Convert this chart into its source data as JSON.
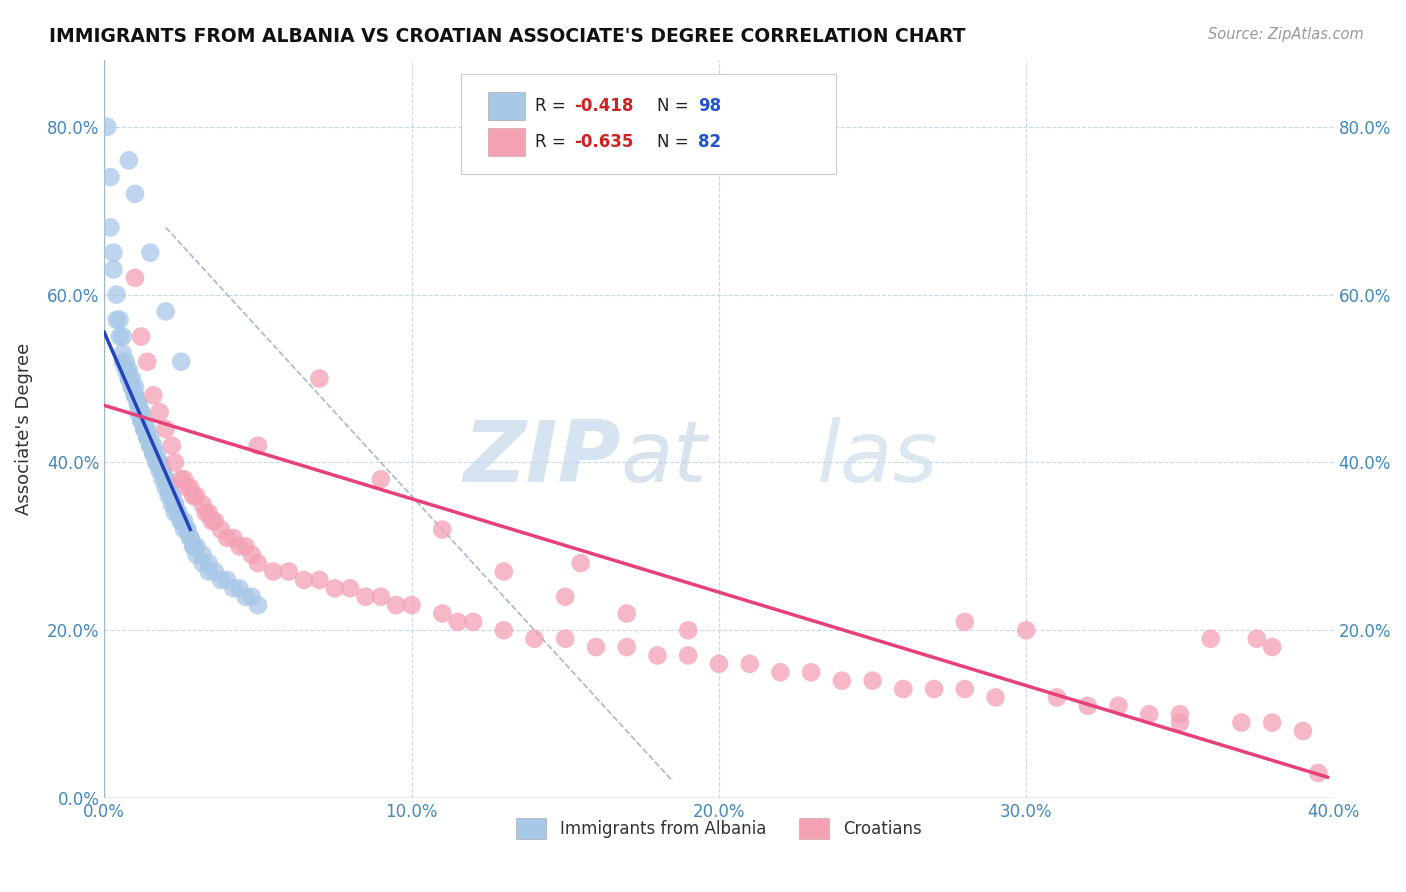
{
  "title": "IMMIGRANTS FROM ALBANIA VS CROATIAN ASSOCIATE'S DEGREE CORRELATION CHART",
  "source_text": "Source: ZipAtlas.com",
  "ylabel": "Associate's Degree",
  "xlim": [
    0.0,
    0.4
  ],
  "ylim": [
    0.0,
    0.88
  ],
  "xticks": [
    0.0,
    0.1,
    0.2,
    0.3,
    0.4
  ],
  "yticks": [
    0.0,
    0.2,
    0.4,
    0.6,
    0.8
  ],
  "xtick_labels": [
    "0.0%",
    "10.0%",
    "20.0%",
    "30.0%",
    "40.0%"
  ],
  "ytick_labels": [
    "0.0%",
    "20.0%",
    "40.0%",
    "60.0%",
    "80.0%"
  ],
  "blue_color": "#a8c8e8",
  "pink_color": "#f4a0b5",
  "blue_line_color": "#2244bb",
  "pink_line_color": "#e8407a",
  "grid_color": "#c8d8e8",
  "dashed_line_color": "#aab8cc",
  "background_color": "#ffffff",
  "blue_scatter": [
    [
      0.001,
      0.8
    ],
    [
      0.002,
      0.74
    ],
    [
      0.002,
      0.68
    ],
    [
      0.003,
      0.65
    ],
    [
      0.003,
      0.63
    ],
    [
      0.004,
      0.6
    ],
    [
      0.004,
      0.57
    ],
    [
      0.005,
      0.57
    ],
    [
      0.005,
      0.55
    ],
    [
      0.006,
      0.55
    ],
    [
      0.006,
      0.53
    ],
    [
      0.006,
      0.52
    ],
    [
      0.007,
      0.52
    ],
    [
      0.007,
      0.51
    ],
    [
      0.008,
      0.51
    ],
    [
      0.008,
      0.5
    ],
    [
      0.008,
      0.5
    ],
    [
      0.009,
      0.5
    ],
    [
      0.009,
      0.49
    ],
    [
      0.009,
      0.49
    ],
    [
      0.01,
      0.49
    ],
    [
      0.01,
      0.48
    ],
    [
      0.01,
      0.48
    ],
    [
      0.01,
      0.48
    ],
    [
      0.011,
      0.47
    ],
    [
      0.011,
      0.47
    ],
    [
      0.011,
      0.47
    ],
    [
      0.011,
      0.46
    ],
    [
      0.012,
      0.46
    ],
    [
      0.012,
      0.46
    ],
    [
      0.012,
      0.45
    ],
    [
      0.012,
      0.45
    ],
    [
      0.013,
      0.45
    ],
    [
      0.013,
      0.44
    ],
    [
      0.013,
      0.44
    ],
    [
      0.013,
      0.44
    ],
    [
      0.014,
      0.44
    ],
    [
      0.014,
      0.43
    ],
    [
      0.014,
      0.43
    ],
    [
      0.014,
      0.43
    ],
    [
      0.015,
      0.43
    ],
    [
      0.015,
      0.42
    ],
    [
      0.015,
      0.42
    ],
    [
      0.015,
      0.42
    ],
    [
      0.016,
      0.42
    ],
    [
      0.016,
      0.41
    ],
    [
      0.016,
      0.41
    ],
    [
      0.017,
      0.41
    ],
    [
      0.017,
      0.4
    ],
    [
      0.017,
      0.4
    ],
    [
      0.018,
      0.4
    ],
    [
      0.018,
      0.4
    ],
    [
      0.018,
      0.39
    ],
    [
      0.019,
      0.39
    ],
    [
      0.019,
      0.39
    ],
    [
      0.019,
      0.38
    ],
    [
      0.02,
      0.38
    ],
    [
      0.02,
      0.38
    ],
    [
      0.02,
      0.37
    ],
    [
      0.021,
      0.37
    ],
    [
      0.021,
      0.37
    ],
    [
      0.021,
      0.36
    ],
    [
      0.022,
      0.36
    ],
    [
      0.022,
      0.36
    ],
    [
      0.022,
      0.35
    ],
    [
      0.023,
      0.35
    ],
    [
      0.023,
      0.35
    ],
    [
      0.023,
      0.34
    ],
    [
      0.024,
      0.34
    ],
    [
      0.024,
      0.34
    ],
    [
      0.025,
      0.33
    ],
    [
      0.025,
      0.33
    ],
    [
      0.026,
      0.33
    ],
    [
      0.026,
      0.32
    ],
    [
      0.027,
      0.32
    ],
    [
      0.027,
      0.32
    ],
    [
      0.028,
      0.31
    ],
    [
      0.028,
      0.31
    ],
    [
      0.029,
      0.3
    ],
    [
      0.029,
      0.3
    ],
    [
      0.03,
      0.3
    ],
    [
      0.03,
      0.29
    ],
    [
      0.032,
      0.29
    ],
    [
      0.032,
      0.28
    ],
    [
      0.034,
      0.28
    ],
    [
      0.034,
      0.27
    ],
    [
      0.036,
      0.27
    ],
    [
      0.038,
      0.26
    ],
    [
      0.04,
      0.26
    ],
    [
      0.042,
      0.25
    ],
    [
      0.044,
      0.25
    ],
    [
      0.046,
      0.24
    ],
    [
      0.048,
      0.24
    ],
    [
      0.05,
      0.23
    ],
    [
      0.015,
      0.65
    ],
    [
      0.02,
      0.58
    ],
    [
      0.025,
      0.52
    ],
    [
      0.01,
      0.72
    ],
    [
      0.008,
      0.76
    ]
  ],
  "pink_scatter": [
    [
      0.01,
      0.62
    ],
    [
      0.012,
      0.55
    ],
    [
      0.014,
      0.52
    ],
    [
      0.016,
      0.48
    ],
    [
      0.018,
      0.46
    ],
    [
      0.02,
      0.44
    ],
    [
      0.022,
      0.42
    ],
    [
      0.023,
      0.4
    ],
    [
      0.025,
      0.38
    ],
    [
      0.026,
      0.38
    ],
    [
      0.027,
      0.37
    ],
    [
      0.028,
      0.37
    ],
    [
      0.029,
      0.36
    ],
    [
      0.03,
      0.36
    ],
    [
      0.032,
      0.35
    ],
    [
      0.033,
      0.34
    ],
    [
      0.034,
      0.34
    ],
    [
      0.035,
      0.33
    ],
    [
      0.036,
      0.33
    ],
    [
      0.038,
      0.32
    ],
    [
      0.04,
      0.31
    ],
    [
      0.042,
      0.31
    ],
    [
      0.044,
      0.3
    ],
    [
      0.046,
      0.3
    ],
    [
      0.048,
      0.29
    ],
    [
      0.05,
      0.28
    ],
    [
      0.055,
      0.27
    ],
    [
      0.06,
      0.27
    ],
    [
      0.065,
      0.26
    ],
    [
      0.07,
      0.26
    ],
    [
      0.075,
      0.25
    ],
    [
      0.08,
      0.25
    ],
    [
      0.085,
      0.24
    ],
    [
      0.09,
      0.24
    ],
    [
      0.095,
      0.23
    ],
    [
      0.1,
      0.23
    ],
    [
      0.11,
      0.22
    ],
    [
      0.115,
      0.21
    ],
    [
      0.12,
      0.21
    ],
    [
      0.13,
      0.2
    ],
    [
      0.14,
      0.19
    ],
    [
      0.15,
      0.19
    ],
    [
      0.155,
      0.28
    ],
    [
      0.16,
      0.18
    ],
    [
      0.17,
      0.18
    ],
    [
      0.18,
      0.17
    ],
    [
      0.19,
      0.17
    ],
    [
      0.2,
      0.16
    ],
    [
      0.21,
      0.16
    ],
    [
      0.22,
      0.15
    ],
    [
      0.23,
      0.15
    ],
    [
      0.24,
      0.14
    ],
    [
      0.25,
      0.14
    ],
    [
      0.26,
      0.13
    ],
    [
      0.27,
      0.13
    ],
    [
      0.28,
      0.13
    ],
    [
      0.29,
      0.12
    ],
    [
      0.3,
      0.2
    ],
    [
      0.31,
      0.12
    ],
    [
      0.32,
      0.11
    ],
    [
      0.33,
      0.11
    ],
    [
      0.34,
      0.1
    ],
    [
      0.35,
      0.1
    ],
    [
      0.36,
      0.19
    ],
    [
      0.37,
      0.09
    ],
    [
      0.375,
      0.19
    ],
    [
      0.38,
      0.09
    ],
    [
      0.39,
      0.08
    ],
    [
      0.395,
      0.03
    ],
    [
      0.05,
      0.42
    ],
    [
      0.07,
      0.5
    ],
    [
      0.09,
      0.38
    ],
    [
      0.11,
      0.32
    ],
    [
      0.13,
      0.27
    ],
    [
      0.15,
      0.24
    ],
    [
      0.17,
      0.22
    ],
    [
      0.19,
      0.2
    ],
    [
      0.28,
      0.21
    ],
    [
      0.35,
      0.09
    ],
    [
      0.38,
      0.18
    ]
  ],
  "blue_line_x": [
    0.0,
    0.028
  ],
  "blue_line_y": [
    0.555,
    0.32
  ],
  "pink_line_x": [
    0.0,
    0.398
  ],
  "pink_line_y": [
    0.468,
    0.025
  ],
  "dashed_line_x": [
    0.02,
    0.185
  ],
  "dashed_line_y": [
    0.68,
    0.02
  ],
  "legend_items": [
    "Immigrants from Albania",
    "Croatians"
  ]
}
